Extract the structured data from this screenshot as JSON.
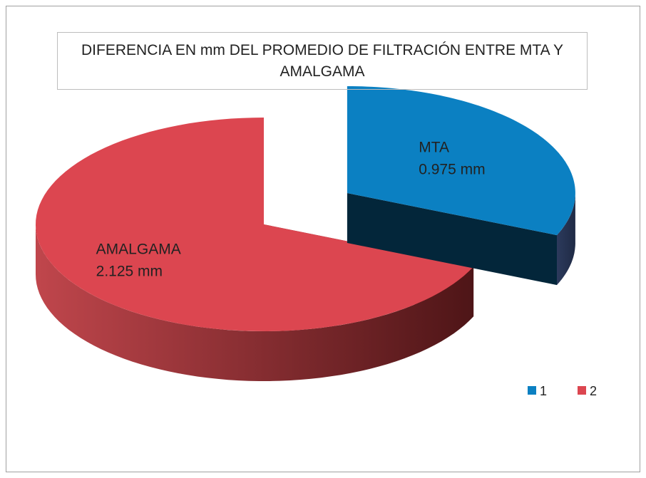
{
  "chart_data": {
    "type": "pie3d",
    "title": "DIFERENCIA EN mm  DEL PROMEDIO DE FILTRACIÓN ENTRE MTA Y AMALGAMA",
    "categories": [
      "MTA",
      "AMALGAMA"
    ],
    "values": [
      0.975,
      2.125
    ],
    "value_labels": [
      "0.975 mm",
      "2.125 mm"
    ],
    "colors": [
      "#0b80c2",
      "#dc4650"
    ],
    "legend_labels": [
      "1",
      "2"
    ],
    "legend": "bottom-right"
  }
}
